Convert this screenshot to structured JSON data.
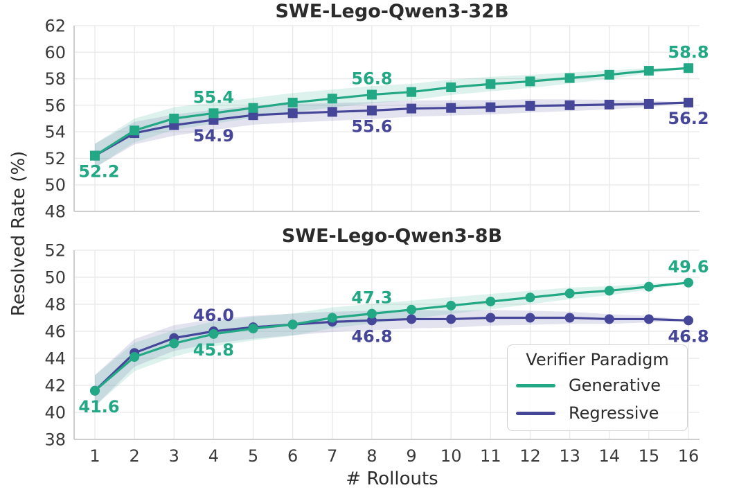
{
  "shared": {
    "xlabel": "# Rollouts",
    "ylabel": "Resolved Rate (%)"
  },
  "legend": {
    "title": "Verifier Paradigm",
    "items": [
      {
        "label": "Generative",
        "color": "#22a884"
      },
      {
        "label": "Regressive",
        "color": "#464699"
      }
    ]
  },
  "colors": {
    "generative": "#22a884",
    "regressive": "#464699",
    "grid": "#e8e8e8",
    "spine": "#c8c8c8",
    "tick_text": "#3a3a3a",
    "title_text": "#2b2b2b"
  },
  "chart_data": [
    {
      "type": "line",
      "title": "SWE-Lego-Qwen3-32B",
      "marker": "square",
      "x": [
        1,
        2,
        3,
        4,
        5,
        6,
        7,
        8,
        9,
        10,
        11,
        12,
        13,
        14,
        15,
        16
      ],
      "ylim": [
        48,
        62
      ],
      "yticks": [
        48,
        50,
        52,
        54,
        56,
        58,
        60,
        62
      ],
      "grid": true,
      "series": [
        {
          "name": "Generative",
          "color": "#22a884",
          "values": [
            52.2,
            54.1,
            55.0,
            55.4,
            55.8,
            56.2,
            56.5,
            56.8,
            57.0,
            57.35,
            57.6,
            57.8,
            58.05,
            58.3,
            58.6,
            58.8
          ],
          "band_halfwidth": [
            0.9,
            0.9,
            0.85,
            0.8,
            0.75,
            0.72,
            0.68,
            0.65,
            0.62,
            0.58,
            0.55,
            0.5,
            0.42,
            0.32,
            0.2,
            0.03
          ]
        },
        {
          "name": "Regressive",
          "color": "#464699",
          "values": [
            52.2,
            53.9,
            54.5,
            54.9,
            55.25,
            55.4,
            55.5,
            55.6,
            55.75,
            55.8,
            55.85,
            55.95,
            56.0,
            56.05,
            56.1,
            56.2
          ],
          "band_halfwidth": [
            0.9,
            0.85,
            0.8,
            0.76,
            0.72,
            0.7,
            0.67,
            0.64,
            0.61,
            0.58,
            0.55,
            0.5,
            0.44,
            0.36,
            0.24,
            0.03
          ]
        }
      ],
      "annotations": [
        {
          "series": "Generative",
          "x": 1,
          "label": "52.2",
          "position": "below",
          "dx": 6
        },
        {
          "series": "Generative",
          "x": 4,
          "label": "55.4",
          "position": "above"
        },
        {
          "series": "Generative",
          "x": 8,
          "label": "56.8",
          "position": "above"
        },
        {
          "series": "Generative",
          "x": 16,
          "label": "58.8",
          "position": "above"
        },
        {
          "series": "Regressive",
          "x": 4,
          "label": "54.9",
          "position": "below"
        },
        {
          "series": "Regressive",
          "x": 8,
          "label": "55.6",
          "position": "below"
        },
        {
          "series": "Regressive",
          "x": 16,
          "label": "56.2",
          "position": "below"
        }
      ]
    },
    {
      "type": "line",
      "title": "SWE-Lego-Qwen3-8B",
      "marker": "circle",
      "x": [
        1,
        2,
        3,
        4,
        5,
        6,
        7,
        8,
        9,
        10,
        11,
        12,
        13,
        14,
        15,
        16
      ],
      "ylim": [
        38,
        52
      ],
      "yticks": [
        38,
        40,
        42,
        44,
        46,
        48,
        50,
        52
      ],
      "grid": true,
      "series": [
        {
          "name": "Generative",
          "color": "#22a884",
          "values": [
            41.6,
            44.1,
            45.1,
            45.8,
            46.2,
            46.5,
            47.0,
            47.3,
            47.6,
            47.9,
            48.2,
            48.5,
            48.8,
            49.0,
            49.3,
            49.6
          ],
          "band_halfwidth": [
            1.15,
            1.05,
            0.98,
            0.92,
            0.87,
            0.82,
            0.77,
            0.72,
            0.67,
            0.62,
            0.57,
            0.5,
            0.43,
            0.34,
            0.22,
            0.03
          ]
        },
        {
          "name": "Regressive",
          "color": "#464699",
          "values": [
            41.6,
            44.4,
            45.5,
            46.0,
            46.3,
            46.5,
            46.7,
            46.8,
            46.9,
            46.9,
            47.0,
            47.0,
            47.0,
            46.9,
            46.9,
            46.8
          ],
          "band_halfwidth": [
            1.15,
            1.02,
            0.95,
            0.9,
            0.85,
            0.8,
            0.75,
            0.72,
            0.68,
            0.63,
            0.58,
            0.52,
            0.45,
            0.36,
            0.24,
            0.03
          ]
        }
      ],
      "annotations": [
        {
          "series": "Generative",
          "x": 1,
          "label": "41.6",
          "position": "below",
          "dx": 6
        },
        {
          "series": "Generative",
          "x": 4,
          "label": "45.8",
          "position": "below"
        },
        {
          "series": "Generative",
          "x": 8,
          "label": "47.3",
          "position": "above"
        },
        {
          "series": "Generative",
          "x": 16,
          "label": "49.6",
          "position": "above"
        },
        {
          "series": "Regressive",
          "x": 4,
          "label": "46.0",
          "position": "above"
        },
        {
          "series": "Regressive",
          "x": 8,
          "label": "46.8",
          "position": "below"
        },
        {
          "series": "Regressive",
          "x": 16,
          "label": "46.8",
          "position": "below"
        }
      ]
    }
  ]
}
